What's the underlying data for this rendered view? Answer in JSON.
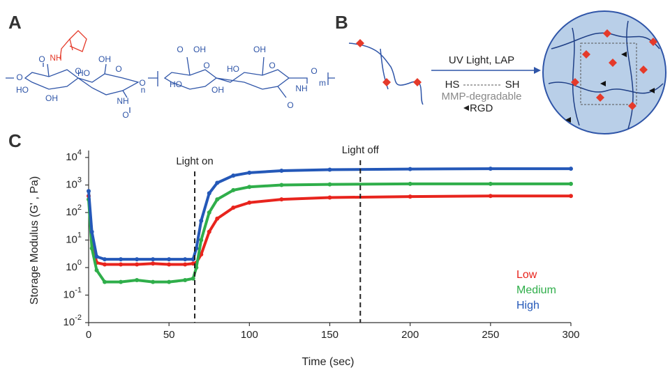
{
  "panels": {
    "a": {
      "label": "A",
      "atoms": [
        "O",
        "O",
        "NH",
        "O",
        "HO",
        "OH",
        "OH",
        "HO",
        "O",
        "O",
        "NH",
        "O",
        "n",
        "O",
        "OH",
        "HO",
        "O",
        "OH",
        "HO",
        "OH",
        "O",
        "O",
        "NH",
        "O",
        "m"
      ]
    },
    "b": {
      "label": "B",
      "reaction": "UV Light, LAP",
      "thiol_left": "HS",
      "thiol_right": "SH",
      "crosslinker": "MMP-degradable",
      "peptide": "RGD"
    }
  },
  "chart_data": {
    "type": "line",
    "label": "C",
    "x_label": "Time (sec)",
    "y_label": "Storage Modulus (G' , Pa)",
    "log_y": true,
    "x": [
      0,
      2,
      5,
      10,
      20,
      30,
      40,
      50,
      60,
      65,
      67,
      70,
      75,
      80,
      90,
      100,
      120,
      150,
      200,
      250,
      300
    ],
    "series": [
      {
        "name": "Low",
        "color": "#e8241d",
        "values": [
          400,
          10,
          1.5,
          1.3,
          1.3,
          1.3,
          1.4,
          1.3,
          1.3,
          1.4,
          1.5,
          3,
          20,
          60,
          150,
          230,
          300,
          350,
          380,
          400,
          400
        ]
      },
      {
        "name": "Medium",
        "color": "#2fae4a",
        "values": [
          300,
          5,
          0.8,
          0.3,
          0.3,
          0.35,
          0.3,
          0.3,
          0.35,
          0.4,
          1,
          10,
          100,
          300,
          650,
          850,
          1000,
          1050,
          1100,
          1100,
          1100
        ]
      },
      {
        "name": "High",
        "color": "#2458b8",
        "values": [
          600,
          20,
          2.5,
          2,
          2,
          2,
          2,
          2,
          2,
          2,
          5,
          50,
          500,
          1200,
          2200,
          2800,
          3300,
          3600,
          3800,
          3900,
          3900
        ]
      }
    ],
    "xlim": [
      0,
      300
    ],
    "xticks": [
      0,
      50,
      100,
      150,
      200,
      250,
      300
    ],
    "ylim": [
      0.01,
      10000
    ],
    "yticks": [
      {
        "value": 0.01,
        "label": "10",
        "exponent": "-2"
      },
      {
        "value": 0.1,
        "label": "10",
        "exponent": "-1"
      },
      {
        "value": 1,
        "label": "10",
        "exponent": "0"
      },
      {
        "value": 10,
        "label": "10",
        "exponent": "1"
      },
      {
        "value": 100,
        "label": "10",
        "exponent": "2"
      },
      {
        "value": 1000,
        "label": "10",
        "exponent": "3"
      },
      {
        "value": 10000,
        "label": "10",
        "exponent": "4"
      }
    ],
    "annotations": [
      {
        "text": "Light on",
        "x": 66
      },
      {
        "text": "Light off",
        "x": 169
      }
    ],
    "legend": "lower right"
  }
}
